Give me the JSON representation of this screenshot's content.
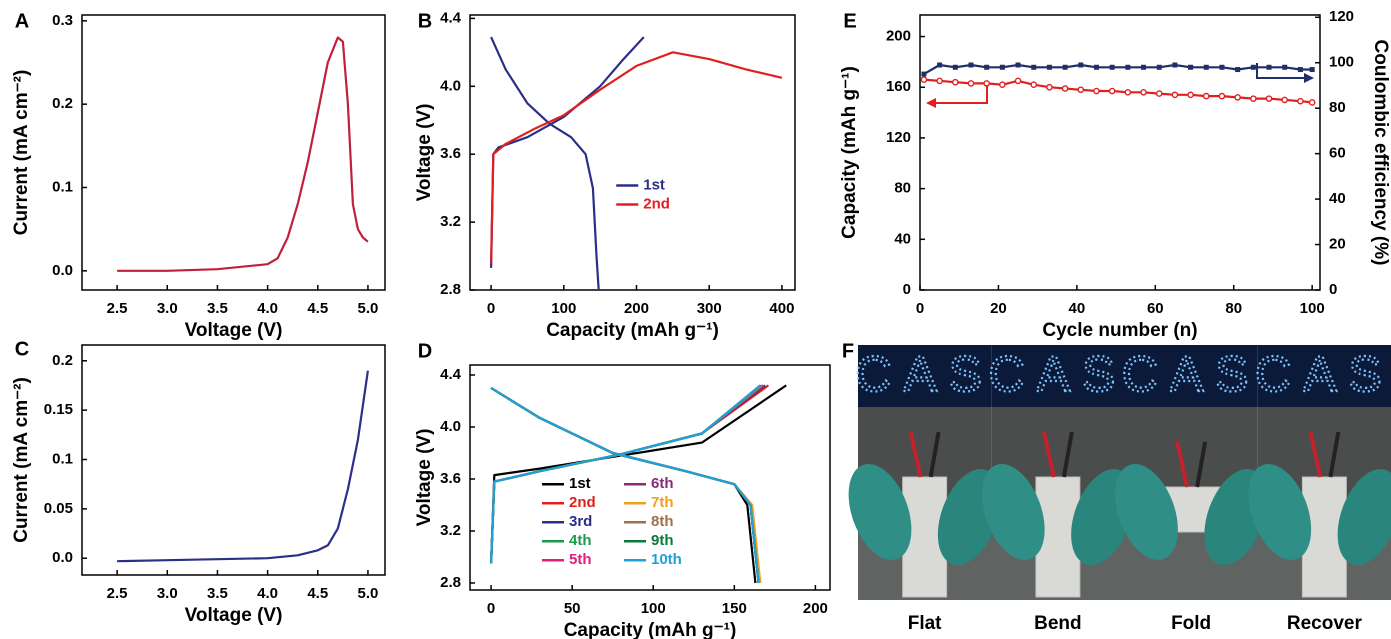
{
  "chart_data": [
    {
      "panel": "A",
      "type": "line",
      "x_label": "Voltage (V)",
      "y_label": "Current (mA cm⁻²)",
      "xlim": [
        2.15,
        5.17
      ],
      "ylim": [
        -0.023,
        0.307
      ],
      "xticks": [
        2.5,
        {
          "value": 3,
          "label": "3.0"
        },
        3.5,
        {
          "value": 4,
          "label": "4.0"
        },
        4.5,
        {
          "value": 5,
          "label": "5.0"
        }
      ],
      "yticks": [
        {
          "value": 0,
          "label": "0.0"
        },
        0.1,
        0.2,
        0.3
      ],
      "series": [
        {
          "color": "#c0203a",
          "x": [
            2.5,
            3.0,
            3.5,
            4.0,
            4.1,
            4.2,
            4.3,
            4.4,
            4.5,
            4.6,
            4.7,
            4.75,
            4.8,
            4.85,
            4.9,
            4.95,
            5.0
          ],
          "values": [
            0,
            0,
            0.002,
            0.008,
            0.015,
            0.04,
            0.08,
            0.13,
            0.19,
            0.25,
            0.28,
            0.275,
            0.2,
            0.08,
            0.05,
            0.04,
            0.035
          ]
        }
      ]
    },
    {
      "panel": "B",
      "type": "line",
      "x_label": "Capacity (mAh g⁻¹)",
      "y_label": "Voltage (V)",
      "legend": "right",
      "xlim": [
        -29,
        418
      ],
      "ylim": [
        2.8,
        4.42
      ],
      "xticks": [
        0,
        100,
        200,
        300,
        400
      ],
      "yticks": [
        2.8,
        3.2,
        3.6,
        {
          "value": 4,
          "label": "4.0"
        },
        4.4
      ],
      "series": [
        {
          "name": "1st",
          "color": "#2b2f86",
          "x": [
            0,
            3,
            10,
            50,
            100,
            150,
            180,
            210,
            null,
            0,
            20,
            50,
            80,
            110,
            130,
            140,
            145,
            148
          ],
          "values": [
            2.93,
            3.6,
            3.64,
            3.7,
            3.82,
            4.0,
            4.15,
            4.29,
            null,
            4.29,
            4.1,
            3.9,
            3.78,
            3.7,
            3.6,
            3.4,
            3.0,
            2.8
          ]
        },
        {
          "name": "2nd",
          "color": "#e02020",
          "x": [
            0,
            3,
            20,
            60,
            100,
            150,
            200,
            250,
            300,
            350,
            400
          ],
          "values": [
            2.96,
            3.6,
            3.66,
            3.75,
            3.83,
            3.98,
            4.12,
            4.2,
            4.16,
            4.1,
            4.05
          ]
        }
      ]
    },
    {
      "panel": "E",
      "type": "line",
      "x_label": "Cycle number (n)",
      "y_label": "Capacity (mAh g⁻¹)",
      "y2_label": "Coulombic efficiency (%)",
      "xlim": [
        0,
        102
      ],
      "ylim": [
        0,
        217
      ],
      "y2lim": [
        0,
        121
      ],
      "xticks": [
        0,
        20,
        40,
        60,
        80,
        100
      ],
      "yticks": [
        0,
        40,
        80,
        120,
        160,
        200
      ],
      "y2ticks": [
        0,
        20,
        40,
        60,
        80,
        100,
        120
      ],
      "series": [
        {
          "color": "#e02020",
          "marker": "circle",
          "x": [
            1,
            5,
            9,
            13,
            17,
            21,
            25,
            29,
            33,
            37,
            41,
            45,
            49,
            53,
            57,
            61,
            65,
            69,
            73,
            77,
            81,
            85,
            89,
            93,
            97,
            100
          ],
          "values": [
            166,
            165,
            164,
            163,
            163,
            162,
            165,
            162,
            160,
            159,
            158,
            157,
            157,
            156,
            156,
            155,
            154,
            154,
            153,
            153,
            152,
            151,
            151,
            150,
            149,
            148
          ]
        },
        {
          "color": "#1f2f6a",
          "marker": "square",
          "axis": "y2",
          "x": [
            1,
            5,
            9,
            13,
            17,
            21,
            25,
            29,
            33,
            37,
            41,
            45,
            49,
            53,
            57,
            61,
            65,
            69,
            73,
            77,
            81,
            85,
            89,
            93,
            97,
            100
          ],
          "values": [
            95,
            99,
            98,
            99,
            98,
            98,
            99,
            98,
            98,
            98,
            99,
            98,
            98,
            98,
            98,
            98,
            99,
            98,
            98,
            98,
            97,
            98,
            98,
            98,
            97,
            97
          ]
        }
      ]
    },
    {
      "panel": "C",
      "type": "line",
      "x_label": "Voltage (V)",
      "y_label": "Current (mA cm⁻²)",
      "xlim": [
        2.15,
        5.17
      ],
      "ylim": [
        -0.017,
        0.216
      ],
      "xticks": [
        2.5,
        {
          "value": 3,
          "label": "3.0"
        },
        3.5,
        {
          "value": 4,
          "label": "4.0"
        },
        4.5,
        {
          "value": 5,
          "label": "5.0"
        }
      ],
      "yticks": [
        {
          "value": 0,
          "label": "0.0"
        },
        0.05,
        0.1,
        0.15,
        0.2
      ],
      "series": [
        {
          "color": "#2b2f86",
          "x": [
            2.5,
            3.0,
            3.5,
            4.0,
            4.3,
            4.5,
            4.6,
            4.7,
            4.8,
            4.9,
            5.0
          ],
          "values": [
            -0.003,
            -0.002,
            -0.001,
            0,
            0.003,
            0.008,
            0.013,
            0.03,
            0.07,
            0.12,
            0.19
          ]
        }
      ]
    },
    {
      "panel": "D",
      "type": "line",
      "x_label": "Capacity (mAh g⁻¹)",
      "y_label": "Voltage (V)",
      "legend": "bottom",
      "xlim": [
        -13,
        209
      ],
      "ylim": [
        2.746,
        4.477
      ],
      "xticks": [
        0,
        50,
        100,
        150,
        200
      ],
      "yticks": [
        2.8,
        3.2,
        3.6,
        {
          "value": 4,
          "label": "4.0"
        },
        4.4
      ],
      "series": [
        {
          "name": "1st",
          "color": "#000000",
          "x": [
            0,
            2,
            30,
            80,
            130,
            182,
            null,
            0,
            30,
            75,
            120,
            150,
            158,
            163
          ],
          "values": [
            2.95,
            3.63,
            3.68,
            3.78,
            3.88,
            4.32,
            null,
            4.3,
            4.07,
            3.8,
            3.66,
            3.56,
            3.4,
            2.8
          ]
        },
        {
          "name": "2nd",
          "color": "#e02020",
          "x": [
            0,
            2,
            30,
            80,
            130,
            171,
            null,
            0,
            30,
            75,
            120,
            150,
            160,
            165
          ],
          "values": [
            2.95,
            3.58,
            3.66,
            3.79,
            3.95,
            4.32,
            null,
            4.3,
            4.07,
            3.8,
            3.66,
            3.56,
            3.4,
            2.8
          ]
        },
        {
          "name": "3rd",
          "color": "#2b2f86",
          "x": [
            0,
            2,
            30,
            80,
            130,
            169,
            null,
            0,
            30,
            75,
            120,
            150,
            160,
            165
          ],
          "values": [
            2.95,
            3.58,
            3.66,
            3.79,
            3.95,
            4.32,
            null,
            4.3,
            4.07,
            3.8,
            3.66,
            3.56,
            3.4,
            2.8
          ]
        },
        {
          "name": "4th",
          "color": "#1a9a4a",
          "x": [
            0,
            2,
            30,
            80,
            130,
            168,
            null,
            0,
            30,
            75,
            120,
            150,
            160,
            165
          ],
          "values": [
            2.95,
            3.58,
            3.66,
            3.79,
            3.95,
            4.32,
            null,
            4.3,
            4.07,
            3.8,
            3.66,
            3.56,
            3.4,
            2.8
          ]
        },
        {
          "name": "5th",
          "color": "#e0207a",
          "x": [
            0,
            2,
            30,
            80,
            130,
            168,
            null,
            0,
            30,
            75,
            120,
            150,
            160,
            165
          ],
          "values": [
            2.95,
            3.58,
            3.66,
            3.79,
            3.95,
            4.32,
            null,
            4.3,
            4.07,
            3.8,
            3.66,
            3.56,
            3.4,
            2.8
          ]
        },
        {
          "name": "6th",
          "color": "#8a2a7a",
          "x": [
            0,
            2,
            30,
            80,
            130,
            167,
            null,
            0,
            30,
            75,
            120,
            150,
            160,
            165
          ],
          "values": [
            2.95,
            3.58,
            3.66,
            3.79,
            3.95,
            4.32,
            null,
            4.3,
            4.07,
            3.8,
            3.66,
            3.56,
            3.4,
            2.8
          ]
        },
        {
          "name": "7th",
          "color": "#f0a020",
          "x": [
            0,
            2,
            30,
            80,
            130,
            167,
            null,
            0,
            30,
            75,
            120,
            150,
            161,
            166
          ],
          "values": [
            2.95,
            3.58,
            3.66,
            3.79,
            3.95,
            4.32,
            null,
            4.3,
            4.07,
            3.8,
            3.66,
            3.56,
            3.4,
            2.8
          ]
        },
        {
          "name": "8th",
          "color": "#a0704a",
          "x": [
            0,
            2,
            30,
            80,
            130,
            167,
            null,
            0,
            30,
            75,
            120,
            150,
            160,
            165
          ],
          "values": [
            2.95,
            3.58,
            3.66,
            3.79,
            3.95,
            4.32,
            null,
            4.3,
            4.07,
            3.8,
            3.66,
            3.56,
            3.4,
            2.8
          ]
        },
        {
          "name": "9th",
          "color": "#0a7a3a",
          "x": [
            0,
            2,
            30,
            80,
            130,
            166,
            null,
            0,
            30,
            75,
            120,
            150,
            160,
            165
          ],
          "values": [
            2.95,
            3.58,
            3.66,
            3.79,
            3.95,
            4.32,
            null,
            4.3,
            4.07,
            3.8,
            3.66,
            3.56,
            3.4,
            2.8
          ]
        },
        {
          "name": "10th",
          "color": "#20a0d8",
          "x": [
            0,
            2,
            30,
            80,
            130,
            166,
            null,
            0,
            30,
            75,
            120,
            150,
            160,
            165
          ],
          "values": [
            2.95,
            3.58,
            3.66,
            3.79,
            3.95,
            4.32,
            null,
            4.3,
            4.07,
            3.8,
            3.66,
            3.56,
            3.4,
            2.8
          ]
        }
      ]
    },
    {
      "panel": "F",
      "type": "photo",
      "sign": "CAS",
      "captions": [
        "Flat",
        "Bend",
        "Fold",
        "Recover"
      ]
    }
  ]
}
